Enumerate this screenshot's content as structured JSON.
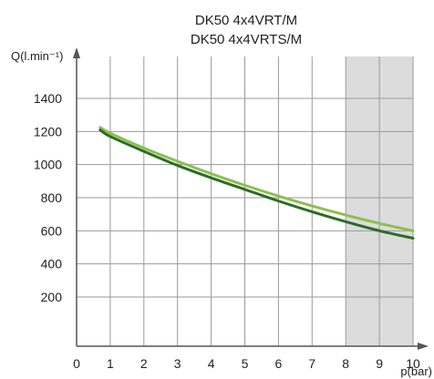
{
  "chart_data": {
    "type": "line",
    "title": [
      "DK50 4x4VRT/M",
      "DK50 4x4VRTS/M"
    ],
    "xlabel": "p(bar)",
    "ylabel": "Q(l.min⁻¹)",
    "xlim": [
      0,
      10
    ],
    "ylim": [
      0,
      1600
    ],
    "x_ticks": [
      0,
      1,
      2,
      3,
      4,
      5,
      6,
      7,
      8,
      9,
      10
    ],
    "y_ticks": [
      200,
      400,
      600,
      800,
      1000,
      1200,
      1400
    ],
    "grid": true,
    "shaded_region": {
      "x_from": 8,
      "x_to": 10,
      "color": "#dcdcdc"
    },
    "series": [
      {
        "color": "#8cc04c",
        "x": [
          0.7,
          1,
          2,
          3,
          4,
          5,
          6,
          7,
          8,
          9,
          10
        ],
        "y": [
          1225,
          1190,
          1100,
          1020,
          945,
          875,
          810,
          750,
          695,
          645,
          600
        ]
      },
      {
        "color": "#2d6b2c",
        "x": [
          0.7,
          1,
          2,
          3,
          4,
          5,
          6,
          7,
          8,
          9,
          10
        ],
        "y": [
          1210,
          1170,
          1080,
          995,
          920,
          850,
          780,
          715,
          655,
          600,
          555
        ]
      }
    ]
  }
}
